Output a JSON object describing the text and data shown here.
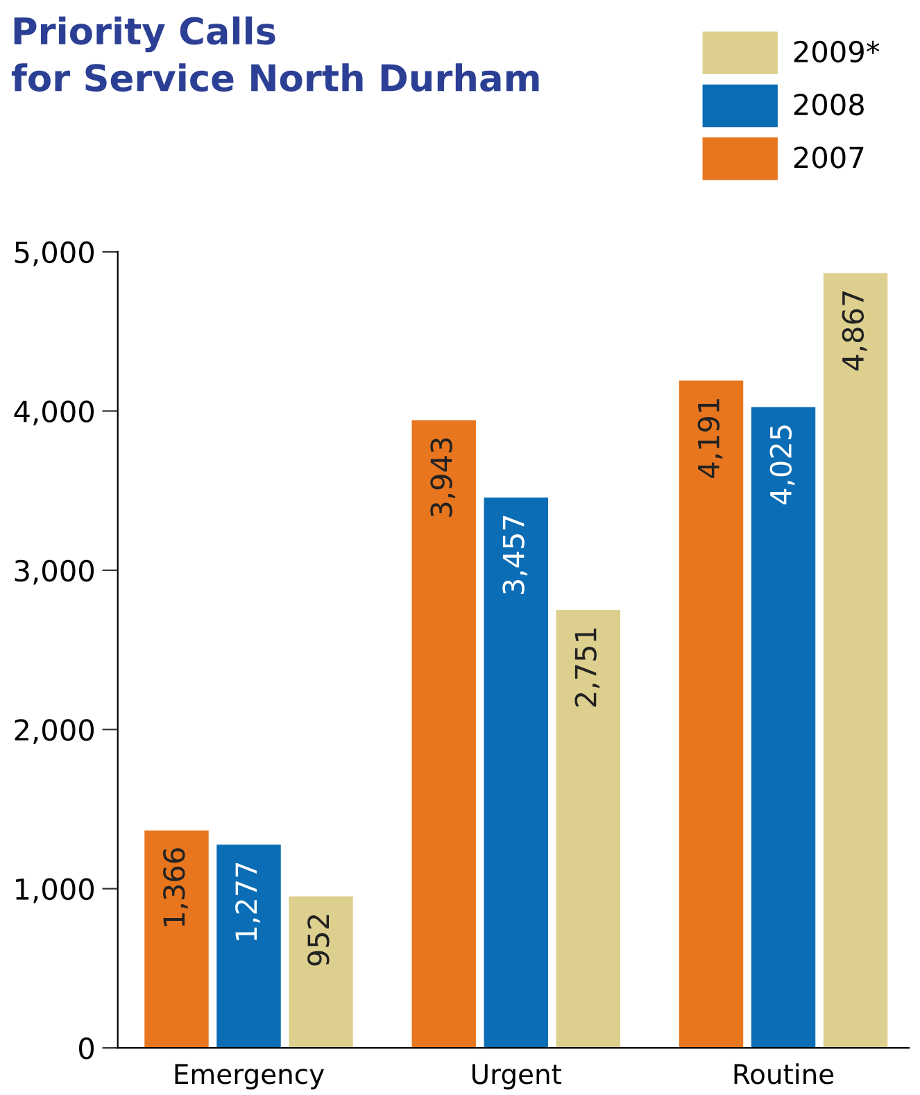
{
  "chart_data": {
    "type": "bar",
    "title": "Priority Calls\nfor Service North Durham",
    "categories": [
      "Emergency",
      "Urgent",
      "Routine"
    ],
    "series": [
      {
        "name": "2007",
        "color": "#e8761f",
        "values": [
          1366,
          3943,
          4191
        ],
        "value_labels": [
          "1,366",
          "3,943",
          "4,191"
        ]
      },
      {
        "name": "2008",
        "color": "#0a6db5",
        "values": [
          1277,
          3457,
          4025
        ],
        "value_labels": [
          "1,277",
          "3,457",
          "4,025"
        ]
      },
      {
        "name": "2009*",
        "color": "#ddd08f",
        "values": [
          952,
          2751,
          4867
        ],
        "value_labels": [
          "952",
          "2,751",
          "4,867"
        ]
      }
    ],
    "ylim": [
      0,
      5000
    ],
    "yticks": [
      {
        "value": 0,
        "label": "0"
      },
      {
        "value": 1000,
        "label": "1,000"
      },
      {
        "value": 2000,
        "label": "2,000"
      },
      {
        "value": 3000,
        "label": "3,000"
      },
      {
        "value": 4000,
        "label": "4,000"
      },
      {
        "value": 5000,
        "label": "5,000"
      }
    ],
    "grid": false,
    "legend": "top right"
  }
}
